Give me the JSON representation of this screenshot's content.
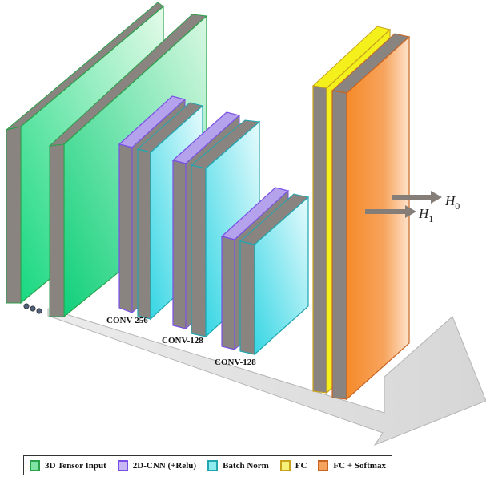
{
  "layers": {
    "conv1_label": "CONV-256",
    "conv2_label": "CONV-128",
    "conv3_label": "CONV-128",
    "output_h0_base": "H",
    "output_h0_sub": "0",
    "output_h1_base": "H",
    "output_h1_sub": "1"
  },
  "legend": [
    {
      "label": "3D Tensor Input",
      "fill": "#7ee3a5",
      "border": "#2aa14a"
    },
    {
      "label": "2D-CNN (+Relu)",
      "fill": "#c8b7f5",
      "border": "#7a4fe6"
    },
    {
      "label": "Batch Norm",
      "fill": "#8fecee",
      "border": "#1fa6b0"
    },
    {
      "label": "FC",
      "fill": "#f7f07a",
      "border": "#c9a21b"
    },
    {
      "label": "FC + Softmax",
      "fill": "#f6a35f",
      "border": "#c86420"
    }
  ],
  "colors": {
    "input_green": "#2fe08f",
    "cnn_purple": "#8a5cf0",
    "bn_cyan": "#5ae0e8",
    "fc_yellow": "#f3f01c",
    "softmax_orange": "#f5913a",
    "side_gray": "#8a8480",
    "arrow_gray": "#dcdcdc"
  }
}
